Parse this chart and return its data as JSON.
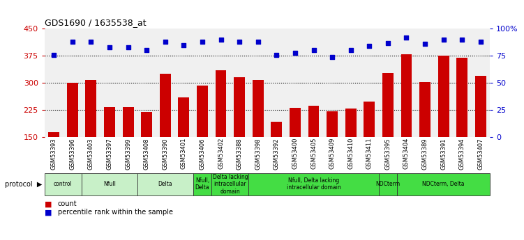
{
  "title": "GDS1690 / 1635538_at",
  "samples": [
    "GSM53393",
    "GSM53396",
    "GSM53403",
    "GSM53397",
    "GSM53399",
    "GSM53408",
    "GSM53390",
    "GSM53401",
    "GSM53406",
    "GSM53402",
    "GSM53388",
    "GSM53398",
    "GSM53392",
    "GSM53400",
    "GSM53405",
    "GSM53409",
    "GSM53410",
    "GSM53411",
    "GSM53395",
    "GSM53404",
    "GSM53389",
    "GSM53391",
    "GSM53394",
    "GSM53407"
  ],
  "counts": [
    163,
    300,
    308,
    232,
    232,
    218,
    325,
    260,
    293,
    335,
    315,
    307,
    192,
    230,
    237,
    220,
    228,
    248,
    328,
    380,
    302,
    375,
    370,
    320
  ],
  "percentiles": [
    76,
    88,
    88,
    83,
    83,
    80,
    88,
    85,
    88,
    90,
    88,
    88,
    76,
    78,
    80,
    74,
    80,
    84,
    87,
    92,
    86,
    90,
    90,
    88
  ],
  "groups": [
    {
      "label": "control",
      "start": 0,
      "end": 2,
      "color": "#c8f0c8"
    },
    {
      "label": "Nfull",
      "start": 2,
      "end": 5,
      "color": "#c8f0c8"
    },
    {
      "label": "Delta",
      "start": 5,
      "end": 8,
      "color": "#c8f0c8"
    },
    {
      "label": "Nfull,\nDelta",
      "start": 8,
      "end": 9,
      "color": "#44dd44"
    },
    {
      "label": "Delta lacking\nintracellular\ndomain",
      "start": 9,
      "end": 11,
      "color": "#44dd44"
    },
    {
      "label": "Nfull, Delta lacking\nintracellular domain",
      "start": 11,
      "end": 18,
      "color": "#44dd44"
    },
    {
      "label": "NDCterm",
      "start": 18,
      "end": 19,
      "color": "#44dd44"
    },
    {
      "label": "NDCterm, Delta",
      "start": 19,
      "end": 24,
      "color": "#44dd44"
    }
  ],
  "ylim_left": [
    150,
    450
  ],
  "ylim_right": [
    0,
    100
  ],
  "yticks_left": [
    150,
    225,
    300,
    375,
    450
  ],
  "yticks_right": [
    0,
    25,
    50,
    75,
    100
  ],
  "bar_color": "#cc0000",
  "dot_color": "#0000cc",
  "grid_values": [
    225,
    300,
    375
  ],
  "bg_color": "#f0f0f0"
}
